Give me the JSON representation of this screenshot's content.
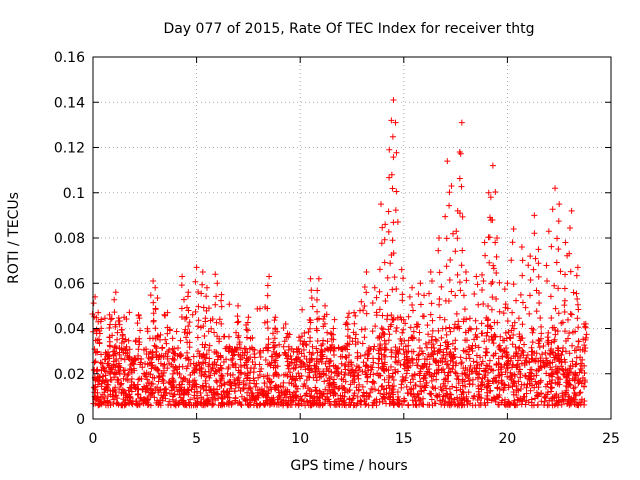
{
  "chart_data": {
    "type": "scatter",
    "title": "Day 077 of 2015, Rate Of TEC Index for receiver thtg",
    "xlabel": "GPS time / hours",
    "ylabel": "ROTI / TECUs",
    "xlim": [
      0,
      25
    ],
    "ylim": [
      0,
      0.16
    ],
    "xticks": [
      "0",
      "5",
      "10",
      "15",
      "20",
      "25"
    ],
    "yticks": [
      "0",
      "0.02",
      "0.04",
      "0.06",
      "0.08",
      "0.1",
      "0.12",
      "0.14",
      "0.16"
    ],
    "x_range_of_data": [
      0,
      23.8
    ],
    "grid": true,
    "marker": "plus",
    "color": "#ff0000",
    "series": [
      {
        "values": [
          [
            0.1,
            0.054
          ],
          [
            0.25,
            0.047
          ],
          [
            0.4,
            0.044
          ],
          [
            0.8,
            0.046
          ],
          [
            1.1,
            0.056
          ],
          [
            1.5,
            0.045
          ],
          [
            2.2,
            0.046
          ],
          [
            2.9,
            0.061
          ],
          [
            3.0,
            0.058
          ],
          [
            3.6,
            0.047
          ],
          [
            4.3,
            0.063
          ],
          [
            4.6,
            0.056
          ],
          [
            5.0,
            0.067
          ],
          [
            5.3,
            0.065
          ],
          [
            5.5,
            0.058
          ],
          [
            5.9,
            0.064
          ],
          [
            6.2,
            0.055
          ],
          [
            7.0,
            0.05
          ],
          [
            7.5,
            0.045
          ],
          [
            8.5,
            0.063
          ],
          [
            8.8,
            0.045
          ],
          [
            9.3,
            0.042
          ],
          [
            10.2,
            0.038
          ],
          [
            10.5,
            0.062
          ],
          [
            10.9,
            0.062
          ],
          [
            11.2,
            0.05
          ],
          [
            11.6,
            0.04
          ],
          [
            12.3,
            0.045
          ],
          [
            12.6,
            0.047
          ],
          [
            13.2,
            0.065
          ],
          [
            13.6,
            0.058
          ],
          [
            13.9,
            0.095
          ],
          [
            14.1,
            0.086
          ],
          [
            14.4,
            0.132
          ],
          [
            14.5,
            0.141
          ],
          [
            14.3,
            0.119
          ],
          [
            14.6,
            0.131
          ],
          [
            14.9,
            0.066
          ],
          [
            15.4,
            0.058
          ],
          [
            15.8,
            0.06
          ],
          [
            16.3,
            0.065
          ],
          [
            16.7,
            0.08
          ],
          [
            17.1,
            0.114
          ],
          [
            17.3,
            0.103
          ],
          [
            17.6,
            0.092
          ],
          [
            17.8,
            0.131
          ],
          [
            17.7,
            0.118
          ],
          [
            18.0,
            0.065
          ],
          [
            18.5,
            0.063
          ],
          [
            18.9,
            0.078
          ],
          [
            19.1,
            0.1
          ],
          [
            19.3,
            0.112
          ],
          [
            19.2,
            0.098
          ],
          [
            19.5,
            0.08
          ],
          [
            20.0,
            0.06
          ],
          [
            20.3,
            0.084
          ],
          [
            20.7,
            0.076
          ],
          [
            21.1,
            0.072
          ],
          [
            21.3,
            0.09
          ],
          [
            21.5,
            0.075
          ],
          [
            22.0,
            0.083
          ],
          [
            22.3,
            0.102
          ],
          [
            22.5,
            0.095
          ],
          [
            22.8,
            0.078
          ],
          [
            23.1,
            0.092
          ],
          [
            23.4,
            0.067
          ],
          [
            23.7,
            0.042
          ]
        ]
      }
    ]
  }
}
